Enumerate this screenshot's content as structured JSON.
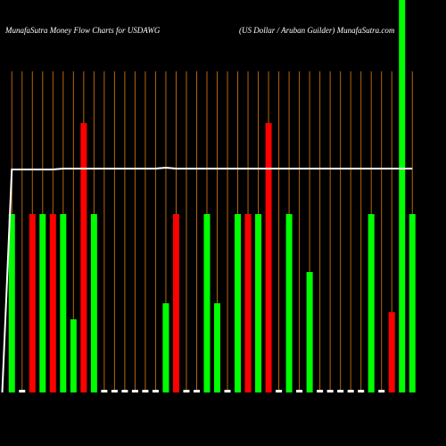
{
  "chart_data": {
    "type": "bar",
    "title": "MunafaSutra  Money Flow  Charts for USDAWG",
    "subtitle": "(US Dollar / Aruban  Guilder) MunafaSutra.com",
    "categories": [
      null,
      null,
      null,
      null,
      null,
      null,
      null,
      null,
      null,
      null,
      null,
      null,
      null,
      null,
      null,
      null,
      null,
      null,
      null,
      null,
      null,
      null,
      null,
      null,
      null,
      null,
      null,
      null,
      null,
      null,
      null,
      null,
      null,
      null,
      null,
      null,
      null,
      null,
      null,
      null
    ],
    "values": [
      200,
      3,
      200,
      200,
      200,
      200,
      82,
      302,
      200,
      3,
      3,
      3,
      3,
      3,
      3,
      100,
      200,
      3,
      3,
      200,
      100,
      3,
      200,
      200,
      200,
      302,
      3,
      200,
      3,
      135,
      3,
      3,
      3,
      3,
      3,
      200,
      3,
      90,
      440,
      200
    ],
    "colors": [
      "#00ff00",
      "#ffffff",
      "#ff0000",
      "#00ff00",
      "#ff0000",
      "#00ff00",
      "#00ff00",
      "#ff0000",
      "#00ff00",
      "#ffffff",
      "#ffffff",
      "#ffffff",
      "#ffffff",
      "#ffffff",
      "#ffffff",
      "#00ff00",
      "#ff0000",
      "#ffffff",
      "#ffffff",
      "#00ff00",
      "#00ff00",
      "#ffffff",
      "#00ff00",
      "#ff0000",
      "#00ff00",
      "#ff0000",
      "#ffffff",
      "#00ff00",
      "#ffffff",
      "#00ff00",
      "#ffffff",
      "#ffffff",
      "#ffffff",
      "#ffffff",
      "#ffffff",
      "#00ff00",
      "#ffffff",
      "#ff0000",
      "#00ff00",
      "#00ff00"
    ],
    "line": {
      "color": "#ffffff",
      "values": [
        250,
        250,
        250,
        250,
        250,
        251,
        251,
        251,
        251,
        251,
        251,
        251,
        251,
        251,
        251,
        252,
        251,
        251,
        251,
        251,
        251,
        251,
        251,
        251,
        251,
        251,
        251,
        251,
        251,
        251,
        251,
        251,
        251,
        251,
        251,
        251,
        251,
        251,
        251,
        251
      ]
    },
    "ylim": [
      0,
      440
    ]
  }
}
